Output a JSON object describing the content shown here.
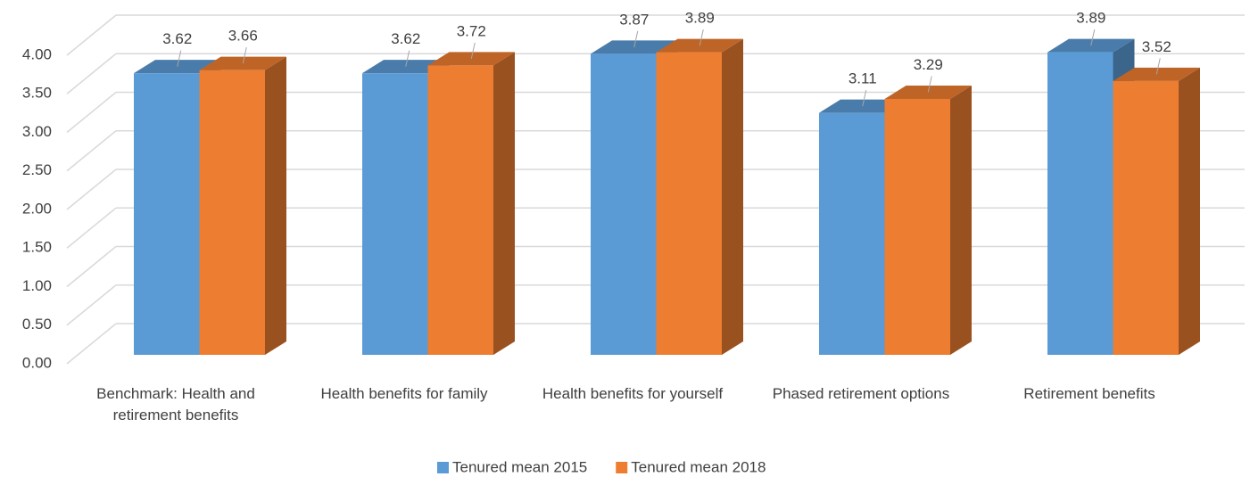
{
  "chart_data": {
    "type": "bar3d",
    "categories": [
      "Benchmark: Health and retirement benefits",
      "Health benefits for family",
      "Health benefits for yourself",
      "Phased retirement options",
      "Retirement benefits"
    ],
    "series": [
      {
        "name": "Tenured mean 2015",
        "color": "#5b9bd5",
        "values": [
          3.62,
          3.62,
          3.87,
          3.11,
          3.89
        ]
      },
      {
        "name": "Tenured mean 2018",
        "color": "#ed7d31",
        "values": [
          3.66,
          3.72,
          3.89,
          3.29,
          3.52
        ]
      }
    ],
    "ylim": [
      0,
      4
    ],
    "yticks": [
      {
        "value": 0,
        "label": "0.00"
      },
      {
        "value": 0.5,
        "label": "0.50"
      },
      {
        "value": 1,
        "label": "1.00"
      },
      {
        "value": 1.5,
        "label": "1.50"
      },
      {
        "value": 2,
        "label": "2.00"
      },
      {
        "value": 2.5,
        "label": "2.50"
      },
      {
        "value": 3,
        "label": "3.00"
      },
      {
        "value": 3.5,
        "label": "3.50"
      },
      {
        "value": 4,
        "label": "4.00"
      }
    ],
    "grid": true,
    "legend": "bottom"
  }
}
